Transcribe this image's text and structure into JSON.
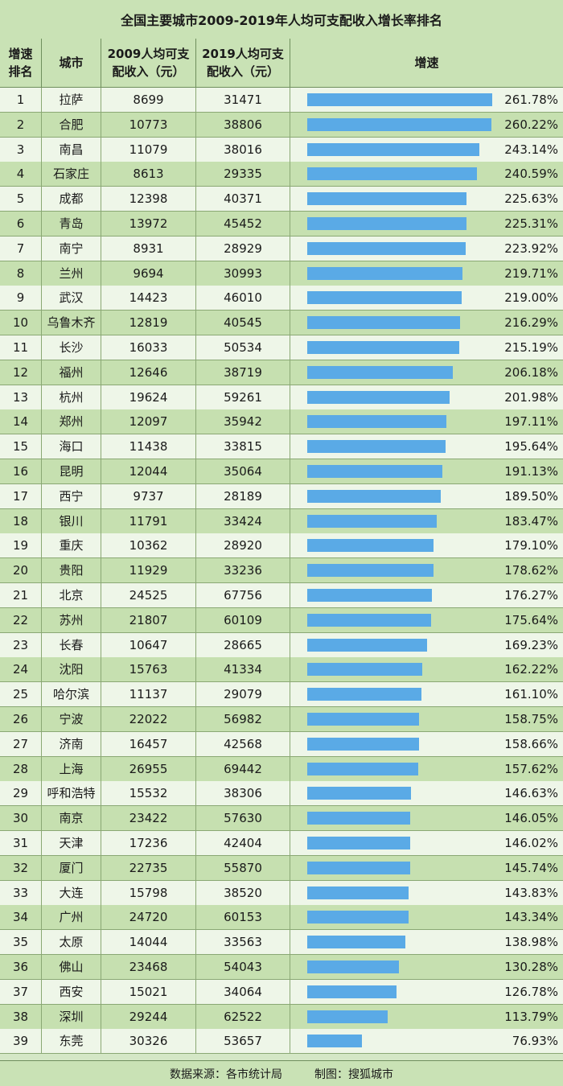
{
  "title": "全国主要城市2009-2019年人均可支配收入增长率排名",
  "headers": {
    "rank": [
      "增速",
      "排名"
    ],
    "city": "城市",
    "income2009": [
      "2009人均可支",
      "配收入（元）"
    ],
    "income2019": [
      "2019人均可支",
      "配收入（元）"
    ],
    "growth": "增速"
  },
  "footer": {
    "source": "数据来源：各市统计局",
    "credit": "制图：搜狐城市"
  },
  "colors": {
    "bar": "#5aaae6",
    "row_light": "#eef6e8",
    "row_dark": "#c6e0b0"
  },
  "chart_data": {
    "type": "table",
    "title": "全国主要城市2009-2019年人均可支配收入增长率排名",
    "rows": [
      {
        "rank": "1",
        "city": "拉萨",
        "income2009": "8699",
        "income2019": "31471",
        "growth": "261.78%",
        "value": 261.78
      },
      {
        "rank": "2",
        "city": "合肥",
        "income2009": "10773",
        "income2019": "38806",
        "growth": "260.22%",
        "value": 260.22
      },
      {
        "rank": "3",
        "city": "南昌",
        "income2009": "11079",
        "income2019": "38016",
        "growth": "243.14%",
        "value": 243.14
      },
      {
        "rank": "4",
        "city": "石家庄",
        "income2009": "8613",
        "income2019": "29335",
        "growth": "240.59%",
        "value": 240.59
      },
      {
        "rank": "5",
        "city": "成都",
        "income2009": "12398",
        "income2019": "40371",
        "growth": "225.63%",
        "value": 225.63
      },
      {
        "rank": "6",
        "city": "青岛",
        "income2009": "13972",
        "income2019": "45452",
        "growth": "225.31%",
        "value": 225.31
      },
      {
        "rank": "7",
        "city": "南宁",
        "income2009": "8931",
        "income2019": "28929",
        "growth": "223.92%",
        "value": 223.92
      },
      {
        "rank": "8",
        "city": "兰州",
        "income2009": "9694",
        "income2019": "30993",
        "growth": "219.71%",
        "value": 219.71
      },
      {
        "rank": "9",
        "city": "武汉",
        "income2009": "14423",
        "income2019": "46010",
        "growth": "219.00%",
        "value": 219.0
      },
      {
        "rank": "10",
        "city": "乌鲁木齐",
        "income2009": "12819",
        "income2019": "40545",
        "growth": "216.29%",
        "value": 216.29
      },
      {
        "rank": "11",
        "city": "长沙",
        "income2009": "16033",
        "income2019": "50534",
        "growth": "215.19%",
        "value": 215.19
      },
      {
        "rank": "12",
        "city": "福州",
        "income2009": "12646",
        "income2019": "38719",
        "growth": "206.18%",
        "value": 206.18
      },
      {
        "rank": "13",
        "city": "杭州",
        "income2009": "19624",
        "income2019": "59261",
        "growth": "201.98%",
        "value": 201.98
      },
      {
        "rank": "14",
        "city": "郑州",
        "income2009": "12097",
        "income2019": "35942",
        "growth": "197.11%",
        "value": 197.11
      },
      {
        "rank": "15",
        "city": "海口",
        "income2009": "11438",
        "income2019": "33815",
        "growth": "195.64%",
        "value": 195.64
      },
      {
        "rank": "16",
        "city": "昆明",
        "income2009": "12044",
        "income2019": "35064",
        "growth": "191.13%",
        "value": 191.13
      },
      {
        "rank": "17",
        "city": "西宁",
        "income2009": "9737",
        "income2019": "28189",
        "growth": "189.50%",
        "value": 189.5
      },
      {
        "rank": "18",
        "city": "银川",
        "income2009": "11791",
        "income2019": "33424",
        "growth": "183.47%",
        "value": 183.47
      },
      {
        "rank": "19",
        "city": "重庆",
        "income2009": "10362",
        "income2019": "28920",
        "growth": "179.10%",
        "value": 179.1
      },
      {
        "rank": "20",
        "city": "贵阳",
        "income2009": "11929",
        "income2019": "33236",
        "growth": "178.62%",
        "value": 178.62
      },
      {
        "rank": "21",
        "city": "北京",
        "income2009": "24525",
        "income2019": "67756",
        "growth": "176.27%",
        "value": 176.27
      },
      {
        "rank": "22",
        "city": "苏州",
        "income2009": "21807",
        "income2019": "60109",
        "growth": "175.64%",
        "value": 175.64
      },
      {
        "rank": "23",
        "city": "长春",
        "income2009": "10647",
        "income2019": "28665",
        "growth": "169.23%",
        "value": 169.23
      },
      {
        "rank": "24",
        "city": "沈阳",
        "income2009": "15763",
        "income2019": "41334",
        "growth": "162.22%",
        "value": 162.22
      },
      {
        "rank": "25",
        "city": "哈尔滨",
        "income2009": "11137",
        "income2019": "29079",
        "growth": "161.10%",
        "value": 161.1
      },
      {
        "rank": "26",
        "city": "宁波",
        "income2009": "22022",
        "income2019": "56982",
        "growth": "158.75%",
        "value": 158.75
      },
      {
        "rank": "27",
        "city": "济南",
        "income2009": "16457",
        "income2019": "42568",
        "growth": "158.66%",
        "value": 158.66
      },
      {
        "rank": "28",
        "city": "上海",
        "income2009": "26955",
        "income2019": "69442",
        "growth": "157.62%",
        "value": 157.62
      },
      {
        "rank": "29",
        "city": "呼和浩特",
        "income2009": "15532",
        "income2019": "38306",
        "growth": "146.63%",
        "value": 146.63
      },
      {
        "rank": "30",
        "city": "南京",
        "income2009": "23422",
        "income2019": "57630",
        "growth": "146.05%",
        "value": 146.05
      },
      {
        "rank": "31",
        "city": "天津",
        "income2009": "17236",
        "income2019": "42404",
        "growth": "146.02%",
        "value": 146.02
      },
      {
        "rank": "32",
        "city": "厦门",
        "income2009": "22735",
        "income2019": "55870",
        "growth": "145.74%",
        "value": 145.74
      },
      {
        "rank": "33",
        "city": "大连",
        "income2009": "15798",
        "income2019": "38520",
        "growth": "143.83%",
        "value": 143.83
      },
      {
        "rank": "34",
        "city": "广州",
        "income2009": "24720",
        "income2019": "60153",
        "growth": "143.34%",
        "value": 143.34
      },
      {
        "rank": "35",
        "city": "太原",
        "income2009": "14044",
        "income2019": "33563",
        "growth": "138.98%",
        "value": 138.98
      },
      {
        "rank": "36",
        "city": "佛山",
        "income2009": "23468",
        "income2019": "54043",
        "growth": "130.28%",
        "value": 130.28
      },
      {
        "rank": "37",
        "city": "西安",
        "income2009": "15021",
        "income2019": "34064",
        "growth": "126.78%",
        "value": 126.78
      },
      {
        "rank": "38",
        "city": "深圳",
        "income2009": "29244",
        "income2019": "62522",
        "growth": "113.79%",
        "value": 113.79
      },
      {
        "rank": "39",
        "city": "东莞",
        "income2009": "30326",
        "income2019": "53657",
        "growth": "76.93%",
        "value": 76.93
      }
    ]
  }
}
